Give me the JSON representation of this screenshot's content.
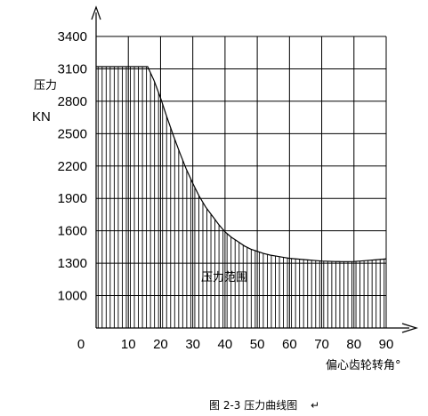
{
  "chart_data": {
    "type": "area",
    "title": "",
    "caption": "图 2-3 压力曲线图",
    "return_mark": "↵",
    "xlabel": "偏心齿轮转角°",
    "ylabel_line1": "压力",
    "ylabel_line2": "KN",
    "xlim": [
      0,
      90
    ],
    "ylim": [
      700,
      3400
    ],
    "x_ticks": [
      0,
      10,
      20,
      30,
      40,
      50,
      60,
      70,
      80,
      90
    ],
    "x_tick_labels": [
      "0",
      "10",
      "20",
      "30",
      "40",
      "50",
      "60",
      "70",
      "80",
      "90"
    ],
    "y_ticks": [
      1000,
      1300,
      1600,
      1900,
      2200,
      2500,
      2800,
      3100,
      3400
    ],
    "y_tick_labels": [
      "1000",
      "1300",
      "1600",
      "1900",
      "2200",
      "2500",
      "2800",
      "3100",
      "3400"
    ],
    "grid": true,
    "area_label": "压力范围",
    "series": [
      {
        "x": [
          0,
          16,
          18,
          20,
          22,
          24,
          26,
          28,
          30,
          32,
          34,
          36,
          38,
          40,
          42,
          44,
          46,
          48,
          50,
          52,
          54,
          56,
          58,
          60,
          62,
          64,
          66,
          68,
          70,
          72,
          74,
          76,
          78,
          80,
          82,
          84,
          86,
          88,
          90
        ],
        "y": [
          3120,
          3120,
          2990,
          2830,
          2650,
          2480,
          2320,
          2170,
          2040,
          1920,
          1820,
          1740,
          1660,
          1590,
          1540,
          1500,
          1460,
          1430,
          1410,
          1390,
          1375,
          1365,
          1355,
          1345,
          1340,
          1335,
          1330,
          1325,
          1320,
          1318,
          1316,
          1315,
          1315,
          1316,
          1320,
          1325,
          1330,
          1335,
          1340
        ]
      }
    ]
  }
}
